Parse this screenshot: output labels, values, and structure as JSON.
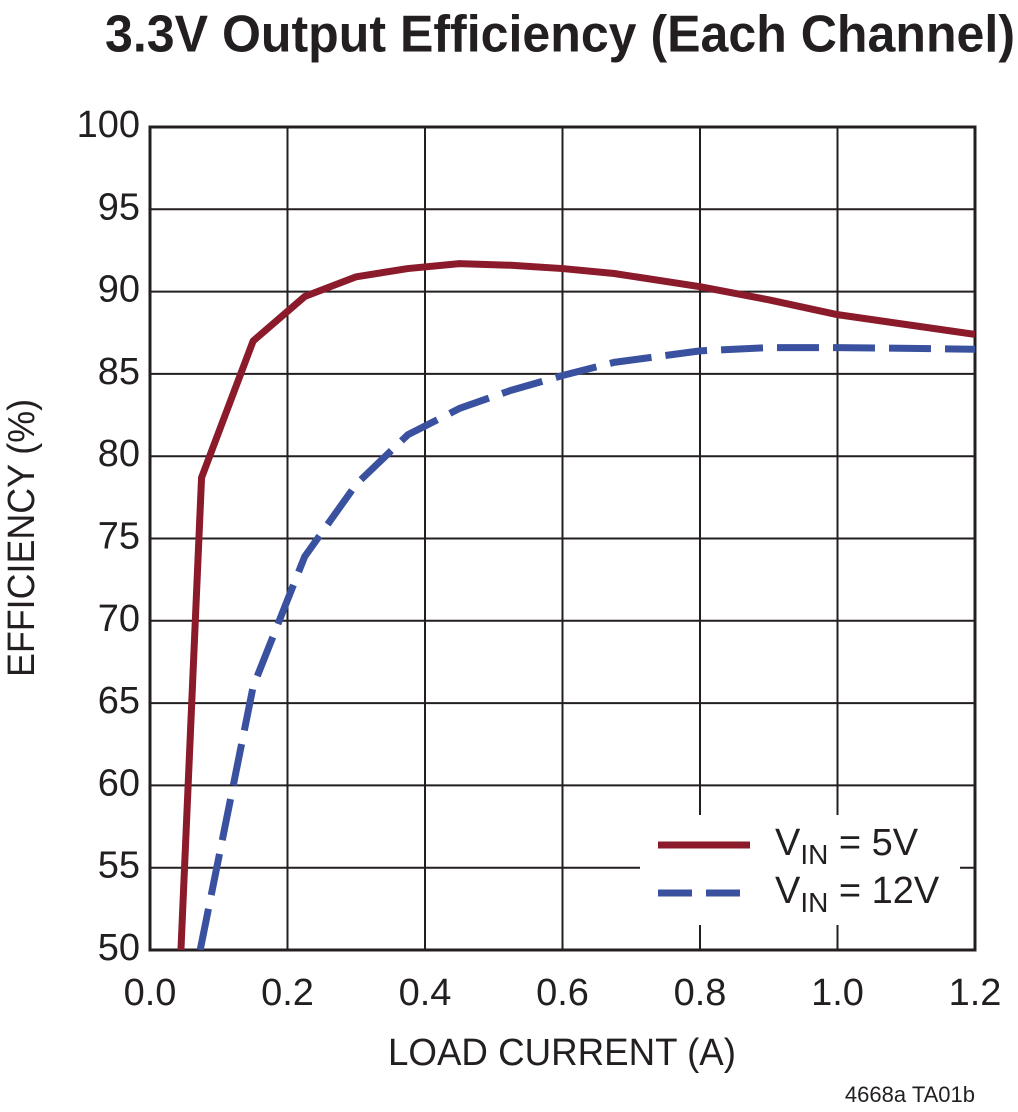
{
  "chart_data": {
    "type": "line",
    "title": "3.3V Output Efficiency (Each Channel)",
    "x_label": "LOAD CURRENT (A)",
    "y_label": "EFFICIENCY (%)",
    "footnote": "4668a TA01b",
    "xlim": [
      0,
      1.2
    ],
    "ylim": [
      50,
      100
    ],
    "xticks": [
      {
        "value": 0,
        "label": "0.0"
      },
      0.2,
      0.4,
      0.6,
      0.8,
      {
        "value": 1,
        "label": "1.0"
      },
      1.2
    ],
    "yticks": [
      50,
      55,
      60,
      65,
      70,
      75,
      80,
      85,
      90,
      95,
      100
    ],
    "grid": true,
    "legend": "lower right",
    "series": [
      {
        "name": "VIN = 5V",
        "color": "#8b1a2b",
        "dash": false,
        "x": [
          0.045,
          0.075,
          0.15,
          0.225,
          0.3,
          0.375,
          0.45,
          0.525,
          0.6,
          0.675,
          0.8,
          0.9,
          1.0,
          1.2
        ],
        "values": [
          50,
          78.7,
          87.0,
          89.7,
          90.9,
          91.4,
          91.7,
          91.6,
          91.4,
          91.1,
          90.3,
          89.5,
          88.6,
          87.4
        ]
      },
      {
        "name": "VIN = 12V",
        "color": "#3a51a0",
        "dash": true,
        "x": [
          0.073,
          0.15,
          0.225,
          0.3,
          0.375,
          0.45,
          0.525,
          0.6,
          0.675,
          0.8,
          0.9,
          1.0,
          1.2
        ],
        "values": [
          50,
          66.0,
          73.9,
          78.3,
          81.3,
          82.9,
          84.0,
          84.9,
          85.7,
          86.4,
          86.6,
          86.6,
          86.5
        ]
      }
    ]
  }
}
